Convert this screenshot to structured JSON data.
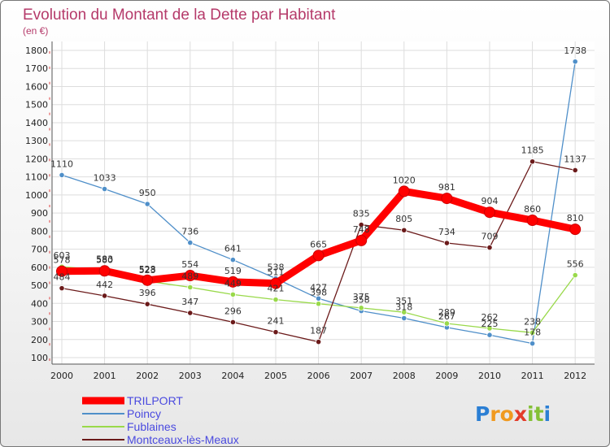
{
  "chart_data": {
    "type": "line",
    "title": "Evolution du Montant de la Dette par Habitant",
    "subtitle": "(en €)",
    "xlabel": "",
    "ylabel": "",
    "ylim": [
      100,
      1800
    ],
    "yticks": [
      100,
      200,
      300,
      400,
      500,
      600,
      700,
      800,
      900,
      1000,
      1100,
      1200,
      1300,
      1400,
      1500,
      1600,
      1700,
      1800
    ],
    "grid": true,
    "legend_position": "bottom-left",
    "categories": [
      "2000",
      "2001",
      "2002",
      "2003",
      "2004",
      "2005",
      "2006",
      "2007",
      "2008",
      "2009",
      "2010",
      "2011",
      "2012"
    ],
    "series": [
      {
        "name": "TRILPORT",
        "color": "#ff0000",
        "values": [
          578,
          580,
          528,
          554,
          519,
          511,
          665,
          748,
          1020,
          981,
          904,
          860,
          810
        ],
        "labels": [
          "578",
          "580",
          "528",
          "554",
          "519",
          "511",
          "665",
          "748",
          "1020",
          "981",
          "904",
          "860",
          "810"
        ]
      },
      {
        "name": "Poincy",
        "color": "#4f8fc9",
        "values": [
          1110,
          1033,
          950,
          736,
          641,
          538,
          427,
          358,
          318,
          267,
          225,
          178,
          1738
        ],
        "labels": [
          "1110",
          "1033",
          "950",
          "736",
          "641",
          "538",
          "427",
          "358",
          "318",
          "267",
          "225",
          "178",
          "1738"
        ]
      },
      {
        "name": "Fublaines",
        "color": "#99d94a",
        "values": [
          603,
          583,
          523,
          489,
          449,
          421,
          398,
          375,
          351,
          289,
          262,
          238,
          556
        ],
        "labels": [
          "603",
          "583",
          "523",
          "489",
          "449",
          "421",
          "398",
          "375",
          "351",
          "289",
          "262",
          "238",
          "556"
        ]
      },
      {
        "name": "Montceaux-lès-Meaux",
        "color": "#6b1a1a",
        "values": [
          484,
          442,
          396,
          347,
          296,
          241,
          187,
          835,
          805,
          734,
          709,
          1185,
          1137
        ],
        "labels": [
          "484",
          "442",
          "396",
          "347",
          "296",
          "241",
          "187",
          "835",
          "805",
          "734",
          "709",
          "1185",
          "1137"
        ]
      }
    ]
  },
  "logo": {
    "text": "Proxiti"
  }
}
